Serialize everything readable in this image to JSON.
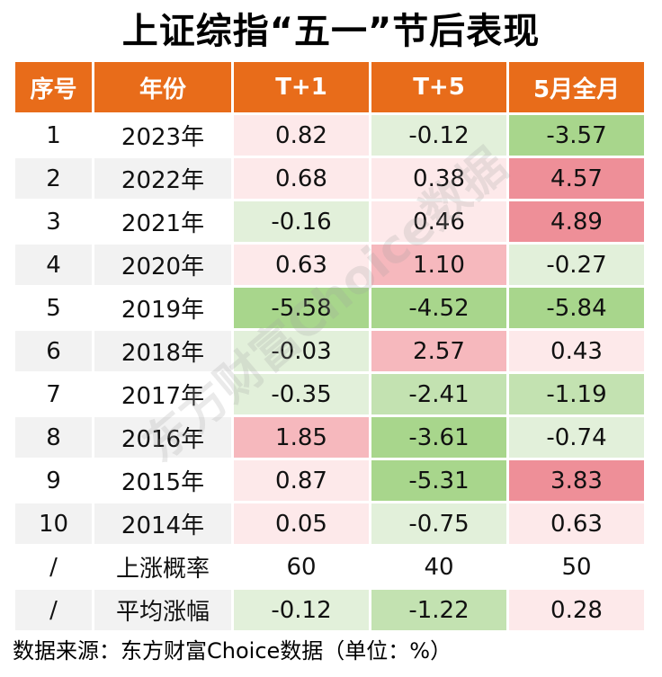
{
  "title": "上证综指“五一”节后表现",
  "headers": [
    "序号",
    "年份",
    "T+1",
    "T+5",
    "5月全月"
  ],
  "chart_data": {
    "type": "table",
    "title": "上证综指“五一”节后表现",
    "columns": [
      "序号",
      "年份",
      "T+1",
      "T+5",
      "5月全月"
    ],
    "rows": [
      {
        "idx": "1",
        "year": "2023年",
        "t1": "0.82",
        "t5": "-0.12",
        "may": "-3.57"
      },
      {
        "idx": "2",
        "year": "2022年",
        "t1": "0.68",
        "t5": "0.38",
        "may": "4.57"
      },
      {
        "idx": "3",
        "year": "2021年",
        "t1": "-0.16",
        "t5": "0.46",
        "may": "4.89"
      },
      {
        "idx": "4",
        "year": "2020年",
        "t1": "0.63",
        "t5": "1.10",
        "may": "-0.27"
      },
      {
        "idx": "5",
        "year": "2019年",
        "t1": "-5.58",
        "t5": "-4.52",
        "may": "-5.84"
      },
      {
        "idx": "6",
        "year": "2018年",
        "t1": "-0.03",
        "t5": "2.57",
        "may": "0.43"
      },
      {
        "idx": "7",
        "year": "2017年",
        "t1": "-0.35",
        "t5": "-2.41",
        "may": "-1.19"
      },
      {
        "idx": "8",
        "year": "2016年",
        "t1": "1.85",
        "t5": "-3.61",
        "may": "-0.74"
      },
      {
        "idx": "9",
        "year": "2015年",
        "t1": "0.87",
        "t5": "-5.31",
        "may": "3.83"
      },
      {
        "idx": "10",
        "year": "2014年",
        "t1": "0.05",
        "t5": "-0.75",
        "may": "0.63"
      },
      {
        "idx": "/",
        "year": "上涨概率",
        "t1": "60",
        "t5": "40",
        "may": "50"
      },
      {
        "idx": "/",
        "year": "平均涨幅",
        "t1": "-0.12",
        "t5": "-1.22",
        "may": "0.28"
      }
    ],
    "units": "%"
  },
  "colors": {
    "header_bg": "#e86c1a",
    "header_text": "#ffffff",
    "positive_scale": [
      "#fde9ea",
      "#f6b8bd",
      "#ee8f98"
    ],
    "negative_scale": [
      "#e2f0da",
      "#c3e2b1",
      "#a8d68c"
    ],
    "neutral": "#f2f2f2"
  },
  "footer": "数据来源：东方财富Choice数据（单位：%）",
  "watermark": "东方财富Choice数据"
}
